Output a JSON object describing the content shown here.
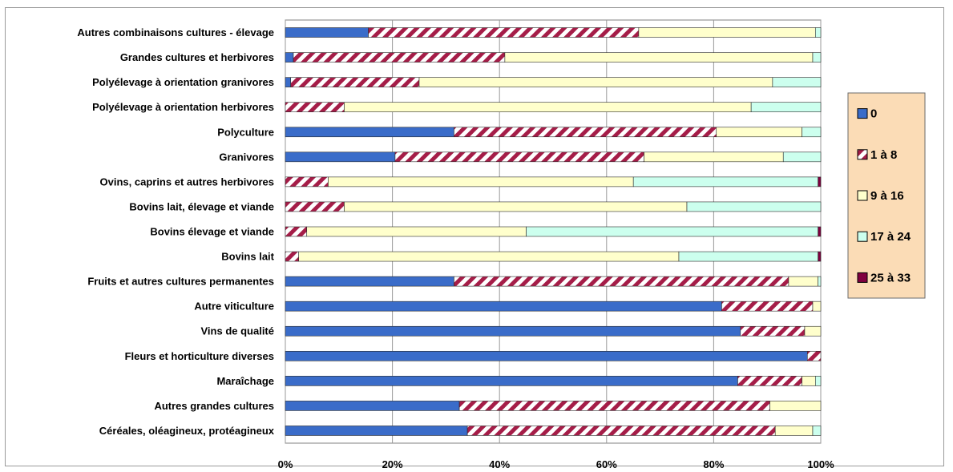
{
  "chart_data": {
    "type": "bar",
    "orientation": "horizontal",
    "stacked": "percent",
    "categories": [
      "Autres combinaisons cultures - élevage",
      "Grandes cultures et herbivores",
      "Polyélevage à orientation granivores",
      "Polyélevage à orientation herbivores",
      "Polyculture",
      "Granivores",
      "Ovins, caprins et autres herbivores",
      "Bovins lait, élevage et viande",
      "Bovins élevage et viande",
      "Bovins lait",
      "Fruits et autres cultures permanentes",
      "Autre viticulture",
      "Vins de qualité",
      "Fleurs et horticulture diverses",
      "Maraîchage",
      "Autres grandes cultures",
      "Céréales, oléagineux, protéagineux"
    ],
    "series": [
      {
        "name": "0",
        "color": "#3a6cc9",
        "pattern": "solid",
        "values": [
          15.5,
          1.5,
          1,
          0,
          31.5,
          20.5,
          0,
          0,
          0,
          0,
          31.5,
          81.5,
          85,
          97.5,
          84.5,
          32.5,
          34
        ]
      },
      {
        "name": "1 à 8",
        "color": "#a51d48",
        "pattern": "diagonal-stripes",
        "values": [
          50.5,
          39.5,
          24,
          11,
          49,
          46.5,
          8,
          11,
          4,
          2.5,
          62.5,
          17,
          12,
          2.5,
          12,
          58,
          57.5
        ]
      },
      {
        "name": "9 à 16",
        "color": "#ffffcc",
        "pattern": "solid",
        "values": [
          33,
          57.5,
          66,
          76,
          16,
          26,
          57,
          64,
          41,
          71,
          5.5,
          1.5,
          3,
          0,
          2.5,
          9.5,
          7
        ]
      },
      {
        "name": "17 à 24",
        "color": "#ccffee",
        "pattern": "solid",
        "values": [
          1,
          1.5,
          9,
          13,
          3.5,
          7,
          34.5,
          25,
          54.5,
          26,
          0.5,
          0,
          0,
          0,
          1,
          0,
          1.5
        ]
      },
      {
        "name": "25 à 33",
        "color": "#800040",
        "pattern": "solid",
        "values": [
          0,
          0,
          0,
          0,
          0,
          0,
          0.5,
          0,
          0.5,
          0.5,
          0,
          0,
          0,
          0,
          0,
          0,
          0
        ]
      }
    ],
    "x_ticks": [
      "0%",
      "20%",
      "40%",
      "60%",
      "80%",
      "100%"
    ],
    "xlim": [
      0,
      100
    ],
    "grid": "vertical",
    "legend": "right"
  }
}
